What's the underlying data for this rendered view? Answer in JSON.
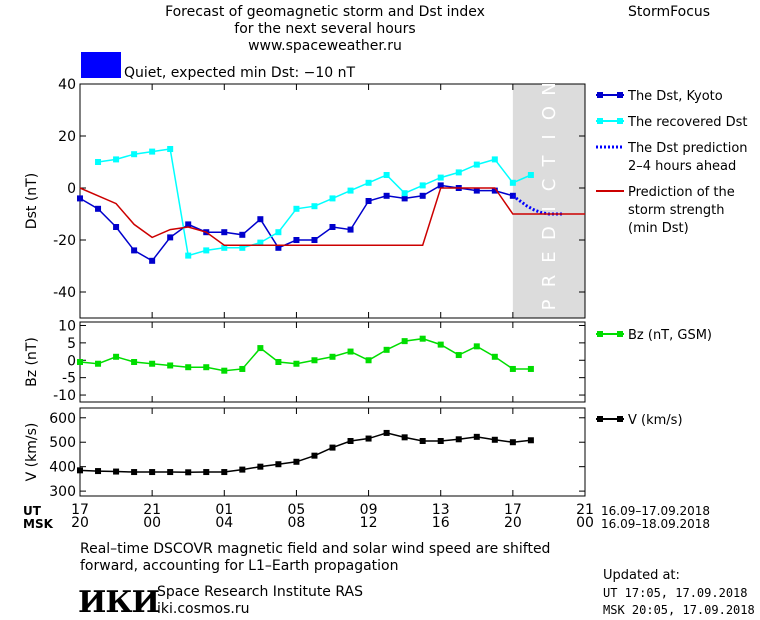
{
  "header": {
    "title_lines": [
      "Forecast of geomagnetic storm and Dst index",
      "for the next several hours",
      "www.spaceweather.ru"
    ],
    "brand": "StormFocus",
    "status_text": "Quiet, expected min Dst: −10 nT",
    "status_color": "#0000ff"
  },
  "colors": {
    "dst_kyoto": "#0000cc",
    "dst_recovered": "#00ffff",
    "dst_prediction": "#0000ff",
    "storm_strength": "#cc0000",
    "bz": "#00dd00",
    "speed": "#000000",
    "prediction_band": "#dcdcdc"
  },
  "chart_data": [
    {
      "type": "line",
      "panel": "dst",
      "ylabel": "Dst (nT)",
      "ylim": [
        -50,
        40
      ],
      "yticks": [
        40,
        20,
        0,
        -20,
        -40
      ],
      "x_unit": "hours since 16.09 17 UT",
      "xlim": [
        0,
        28
      ],
      "band_label": "PREDICTION",
      "band_range": [
        24,
        28
      ],
      "series": [
        {
          "name": "The Dst, Kyoto",
          "style": "line-square",
          "x": [
            0,
            1,
            2,
            3,
            4,
            5,
            6,
            7,
            8,
            9,
            10,
            11,
            12,
            13,
            14,
            15,
            16,
            17,
            18,
            19,
            20,
            21,
            22,
            23,
            24
          ],
          "values": [
            -4,
            -8,
            -15,
            -24,
            -28,
            -19,
            -14,
            -17,
            -17,
            -18,
            -12,
            -23,
            -20,
            -20,
            -15,
            -16,
            -5,
            -3,
            -4,
            -3,
            1,
            0,
            -1,
            -1,
            -3
          ]
        },
        {
          "name": "The recovered Dst",
          "style": "line-square",
          "x": [
            1,
            2,
            3,
            4,
            5,
            6,
            7,
            8,
            9,
            10,
            11,
            12,
            13,
            14,
            15,
            16,
            17,
            18,
            19,
            20,
            21,
            22,
            23,
            24,
            25
          ],
          "values": [
            10,
            11,
            13,
            14,
            15,
            -26,
            -24,
            -23,
            -23,
            -21,
            -17,
            -8,
            -7,
            -4,
            -1,
            2,
            5,
            -2,
            1,
            4,
            6,
            9,
            11,
            2,
            5
          ]
        },
        {
          "name": "The Dst prediction 2–4 hours ahead",
          "style": "dotted",
          "x": [
            24,
            24.4,
            24.8,
            25.2,
            25.6,
            26,
            26.4,
            26.8
          ],
          "values": [
            -3,
            -5,
            -7,
            -8.5,
            -9.5,
            -10,
            -10,
            -10
          ]
        },
        {
          "name": "Prediction of the storm strength (min Dst)",
          "style": "line",
          "x": [
            0,
            1,
            2,
            3,
            4,
            5,
            6,
            7,
            8,
            9,
            10,
            11,
            12,
            13,
            14,
            15,
            16,
            17,
            18,
            19,
            20,
            21,
            22,
            23,
            24,
            25,
            26,
            27,
            28
          ],
          "values": [
            0,
            -3,
            -6,
            -14,
            -19,
            -16,
            -15,
            -17,
            -22,
            -22,
            -22,
            -22,
            -22,
            -22,
            -22,
            -22,
            -22,
            -22,
            -22,
            -22,
            0,
            0,
            0,
            0,
            -10,
            -10,
            -10,
            -10,
            -10
          ]
        }
      ]
    },
    {
      "type": "line",
      "panel": "bz",
      "ylabel": "Bz (nT)",
      "ylim": [
        -12,
        11
      ],
      "yticks": [
        10,
        5,
        0,
        -5,
        -10
      ],
      "x_unit": "hours since 16.09 17 UT",
      "xlim": [
        0,
        28
      ],
      "series": [
        {
          "name": "Bz (nT, GSM)",
          "style": "line-square",
          "x": [
            0,
            1,
            2,
            3,
            4,
            5,
            6,
            7,
            8,
            9,
            10,
            11,
            12,
            13,
            14,
            15,
            16,
            17,
            18,
            19,
            20,
            21,
            22,
            23,
            24,
            25
          ],
          "values": [
            -0.5,
            -1,
            1,
            -0.5,
            -1,
            -1.5,
            -2,
            -2,
            -3,
            -2.5,
            3.5,
            -0.5,
            -1,
            0,
            1,
            2.5,
            0,
            3,
            5.5,
            6.2,
            4.5,
            1.5,
            4,
            1,
            -2.5,
            -2.5
          ]
        }
      ]
    },
    {
      "type": "line",
      "panel": "speed",
      "ylabel": "V (km/s)",
      "ylim": [
        280,
        640
      ],
      "yticks": [
        600,
        500,
        400,
        300
      ],
      "x_unit": "hours since 16.09 17 UT",
      "xlim": [
        0,
        28
      ],
      "series": [
        {
          "name": "V (km/s)",
          "style": "line-square",
          "x": [
            0,
            1,
            2,
            3,
            4,
            5,
            6,
            7,
            8,
            9,
            10,
            11,
            12,
            13,
            14,
            15,
            16,
            17,
            18,
            19,
            20,
            21,
            22,
            23,
            24,
            25
          ],
          "values": [
            385,
            382,
            380,
            378,
            378,
            378,
            377,
            378,
            378,
            388,
            400,
            410,
            420,
            445,
            478,
            505,
            515,
            538,
            520,
            505,
            505,
            512,
            522,
            510,
            500,
            508
          ]
        }
      ]
    }
  ],
  "axes": {
    "ut_label": "UT",
    "msk_label": "MSK",
    "ut_ticks": [
      "17",
      "21",
      "01",
      "05",
      "09",
      "13",
      "17",
      "21"
    ],
    "msk_ticks": [
      "20",
      "00",
      "04",
      "08",
      "12",
      "16",
      "20",
      "00"
    ],
    "ut_dates": "16.09–17.09.2018",
    "msk_dates": "16.09–18.09.2018"
  },
  "footer": {
    "note_line1": "Real–time DSCOVR magnetic field and solar wind speed are shifted",
    "note_line2": "forward, accounting for L1–Earth propagation",
    "logo_text": "ИКИ",
    "institute": "Space Research Institute RAS",
    "website": "iki.cosmos.ru",
    "updated_label": "Updated at:",
    "updated_ut": "UT   17:05, 17.09.2018",
    "updated_msk": "MSK 20:05, 17.09.2018"
  }
}
